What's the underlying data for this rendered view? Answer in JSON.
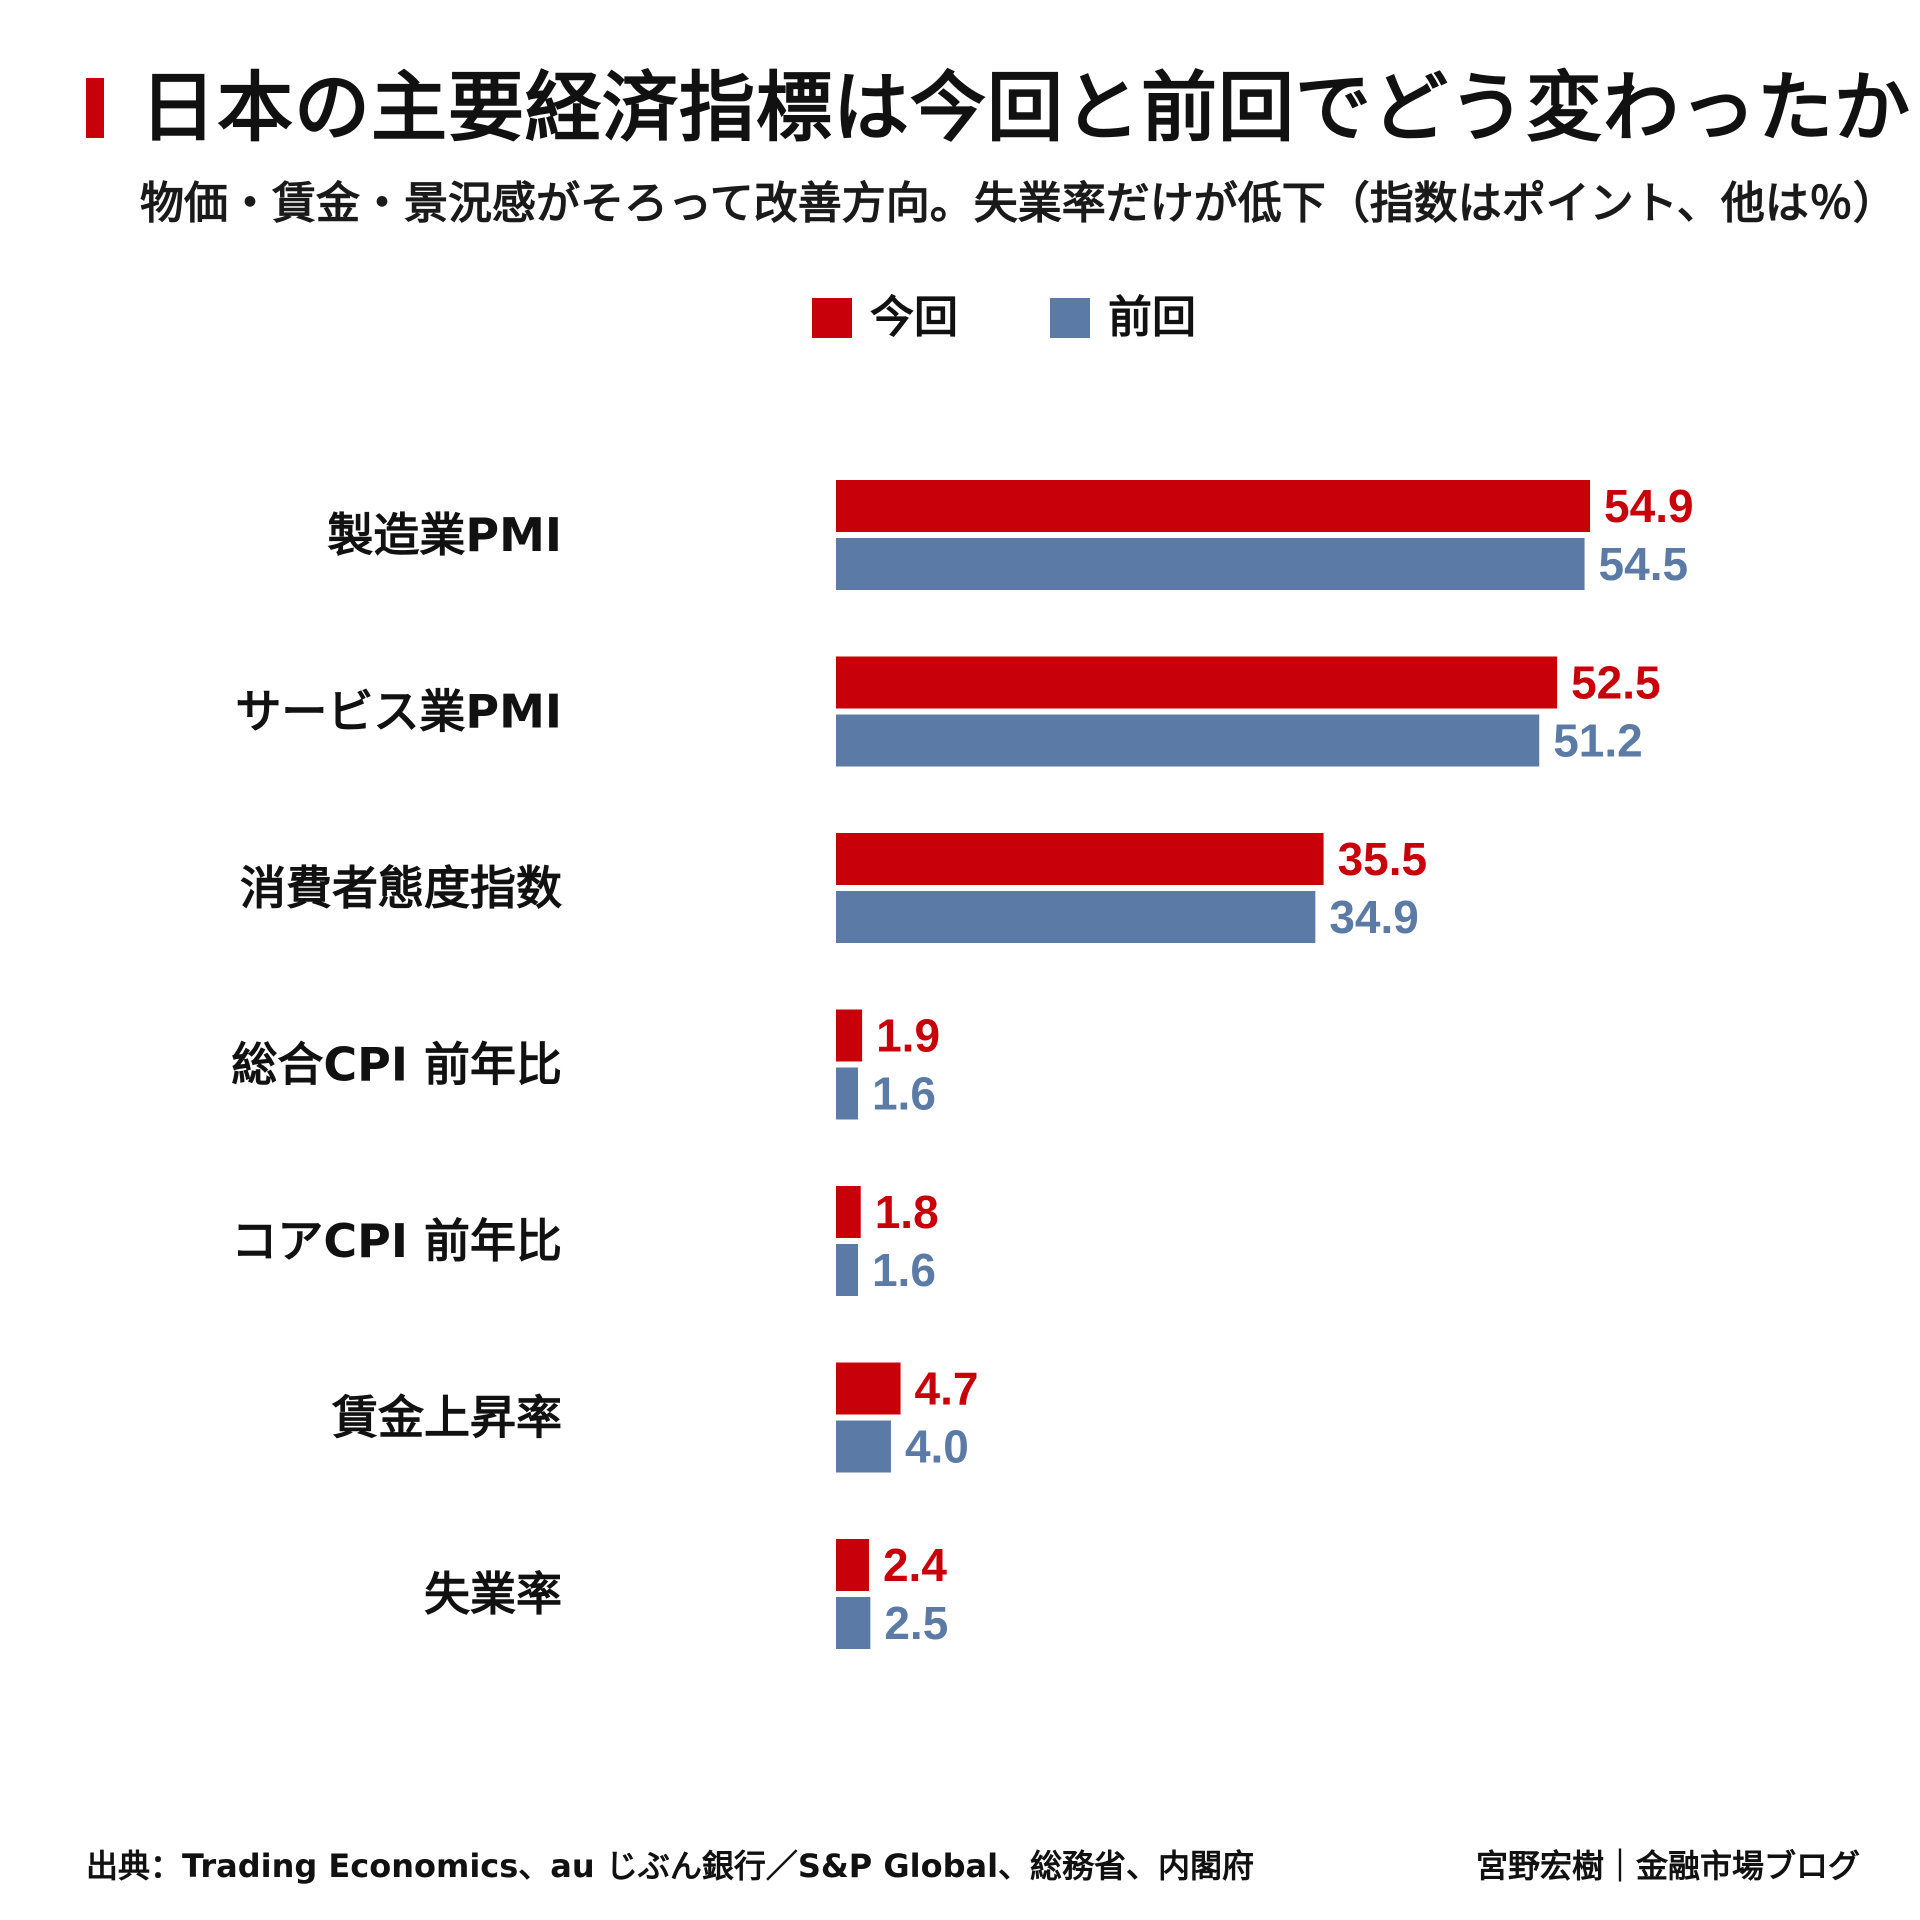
{
  "header": {
    "title": "日本の主要経済指標は今回と前回でどう変わったか",
    "subtitle": "物価・賃金・景況感がそろって改善方向。失業率だけが低下（指数はポイント、他は％）"
  },
  "legend": {
    "current_label": "今回",
    "previous_label": "前回"
  },
  "colors": {
    "current": "#c8000a",
    "previous": "#5b7ba6",
    "accent": "#c8000a"
  },
  "chart_data": {
    "type": "bar",
    "orientation": "horizontal",
    "categories": [
      "製造業PMI",
      "サービス業PMI",
      "消費者態度指数",
      "総合CPI 前年比",
      "コアCPI 前年比",
      "賃金上昇率",
      "失業率"
    ],
    "series": [
      {
        "name": "今回",
        "values": [
          54.9,
          52.5,
          35.5,
          1.9,
          1.8,
          4.7,
          2.4
        ],
        "labels": [
          "54.9",
          "52.5",
          "35.5",
          "1.9",
          "1.8",
          "4.7",
          "2.4"
        ]
      },
      {
        "name": "前回",
        "values": [
          54.5,
          51.2,
          34.9,
          1.6,
          1.6,
          4.0,
          2.5
        ],
        "labels": [
          "54.5",
          "51.2",
          "34.9",
          "1.6",
          "1.6",
          "4.0",
          "2.5"
        ]
      }
    ],
    "xlim": [
      0,
      55
    ],
    "grid": false,
    "legend_position": "top-center"
  },
  "footer": {
    "source": "出典：Trading Economics、au じぶん銀行／S&P Global、総務省、内閣府",
    "credit": "宮野宏樹｜金融市場ブログ"
  }
}
